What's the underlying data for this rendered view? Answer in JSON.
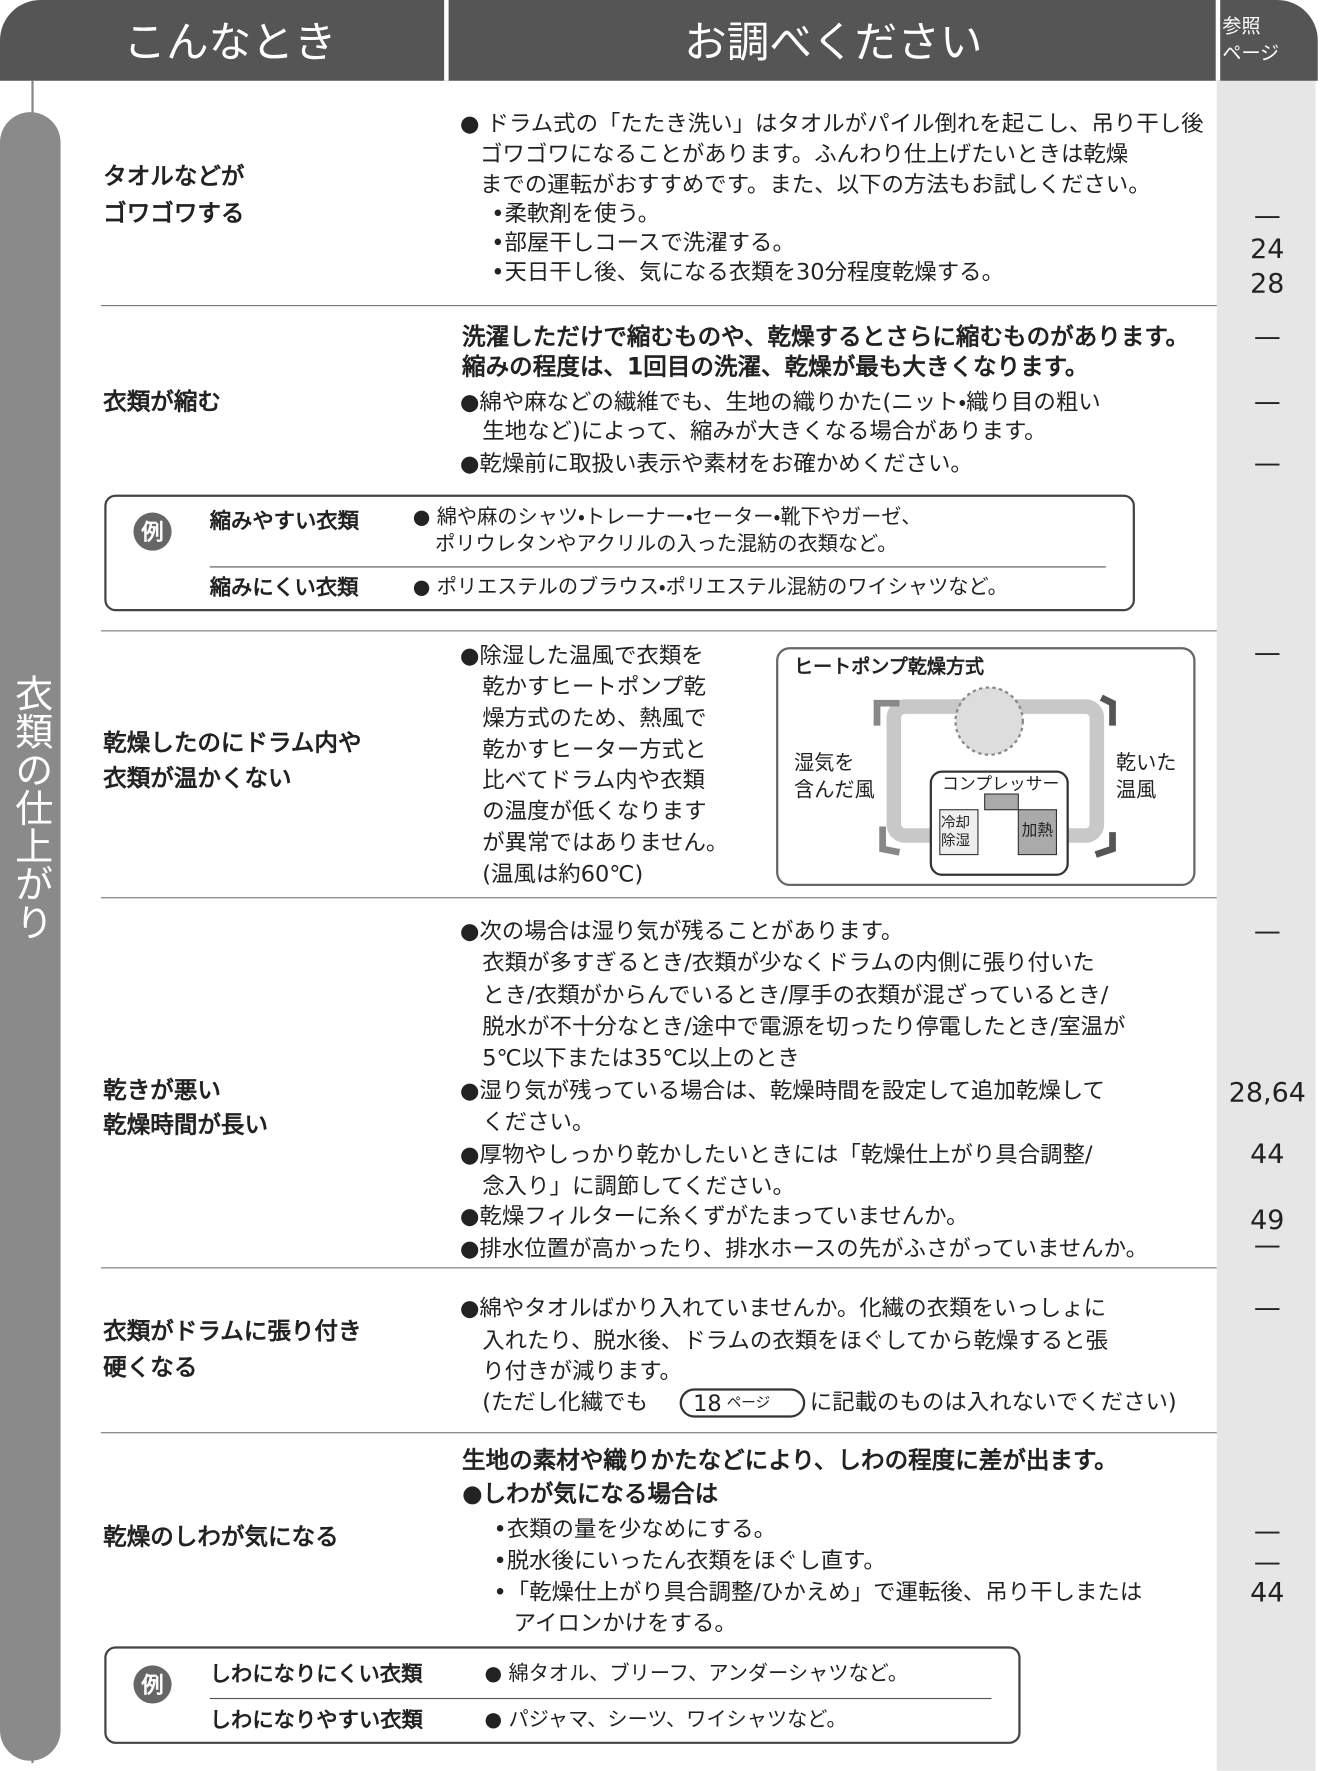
{
  "header": {
    "col1": "こんなとき",
    "col2": "お調べください",
    "col3": [
      "参照",
      "ページ"
    ]
  },
  "side_label": "衣類の仕上がり",
  "rows": [
    {
      "symptom": [
        "タオルなどが",
        "ゴワゴワする"
      ],
      "content": [
        "● ドラム式の「たたき洗い」はタオルがパイル倒れを起こし、吊り干し後",
        "ゴワゴワになることがあります。ふんわり仕上げたいときは乾燥",
        "までの運転がおすすめです。また、以下の方法もお試しください。",
        "•柔軟剤を使う。",
        "•部屋干しコースで洗濯する。",
        "•天日干し後、気になる衣類を30分程度乾燥する。"
      ],
      "refs": [
        "—",
        "24",
        "28"
      ]
    },
    {
      "symptom": [
        "衣類が縮む"
      ],
      "content": [
        "洗濯しただけで縮むものや、乾燥するとさらに縮むものがあります。",
        "縮みの程度は、1回目の洗濯、乾燥が最も大きくなります。",
        "●綿や麻などの繊維でも、生地の織りかた(ニット・織り目の粗い",
        "生地など)によって、縮みが大きくなる場合があります。",
        "●乾燥前に取扱い表示や素材をお確かめください。"
      ],
      "refs": [
        "—",
        "—",
        "—"
      ],
      "example": {
        "badge": "例",
        "items": [
          {
            "label": "縮みやすい衣類",
            "lines": [
              "● 綿や麻のシャツ・トレーナー・セーター・靴下やガーゼ、",
              "ポリウレタンやアクリルの入った混紡の衣類など。"
            ]
          },
          {
            "label": "縮みにくい衣類",
            "lines": [
              "● ポリエステルのブラウス・ポリエステル混紡のワイシャツなど。"
            ]
          }
        ]
      }
    },
    {
      "symptom": [
        "乾燥したのにドラム内や",
        "衣類が温かくない"
      ],
      "content": [
        "●除湿した温風で衣類を",
        "乾かすヒートポンプ乾",
        "燥方式のため、熱風で",
        "乾かすヒーター方式と",
        "比べてドラム内や衣類",
        "の温度が低くなります",
        "が異常ではありません。",
        "(温風は約60℃)"
      ],
      "refs": [
        "—"
      ],
      "diagram": {
        "title": "ヒートポンプ乾燥方式",
        "left_label": [
          "湿気を",
          "含んだ風"
        ],
        "right_label": [
          "乾いた",
          "温風"
        ],
        "compressor": "コンプレッサー",
        "cooling": [
          "冷却",
          "除湿"
        ],
        "heating": "加熱"
      }
    },
    {
      "symptom": [
        "乾きが悪い",
        "乾燥時間が長い"
      ],
      "content": [
        "●次の場合は湿り気が残ることがあります。",
        "衣類が多すぎるとき/衣類が少なくドラムの内側に張り付いた",
        "とき/衣類がからんでいるとき/厚手の衣類が混ざっているとき/",
        "脱水が不十分なとき/途中で電源を切ったり停電したとき/室温が",
        "5℃以下または35℃以上のとき",
        "●湿り気が残っている場合は、乾燥時間を設定して追加乾燥して",
        "ください。",
        "●厚物やしっかり乾かしたいときには「乾燥仕上がり具合調整/",
        "念入り」に調節してください。",
        "●乾燥フィルターに糸くずがたまっていませんか。",
        "●排水位置が高かったり、排水ホースの先がふさがっていませんか。"
      ],
      "refs": [
        "—",
        "28,64",
        "44",
        "49",
        "—"
      ]
    },
    {
      "symptom": [
        "衣類がドラムに張り付き",
        "硬くなる"
      ],
      "content": [
        "●綿やタオルばかり入れていませんか。化繊の衣類をいっしょに",
        "入れたり、脱水後、ドラムの衣類をほぐしてから乾燥すると張",
        "り付きが減ります。"
      ],
      "note": {
        "before": "(ただし化繊でも",
        "page": "18",
        "unit": "ページ",
        "after": "に記載のものは入れないでください)"
      },
      "refs": [
        "—"
      ]
    },
    {
      "symptom": [
        "乾燥のしわが気になる"
      ],
      "content": [
        "生地の素材や織りかたなどにより、しわの程度に差が出ます。",
        "●しわが気になる場合は",
        "•衣類の量を少なめにする。",
        "•脱水後にいったん衣類をほぐし直す。",
        "•「乾燥仕上がり具合調整/ひかえめ」で運転後、吊り干しまたは",
        "アイロンかけをする。"
      ],
      "refs": [
        "—",
        "—",
        "44"
      ],
      "example": {
        "badge": "例",
        "items": [
          {
            "label": "しわになりにくい衣類",
            "lines": [
              "● 綿タオル、ブリーフ、アンダーシャツなど。"
            ]
          },
          {
            "label": "しわになりやすい衣類",
            "lines": [
              "● パジャマ、シーツ、ワイシャツなど。"
            ]
          }
        ]
      }
    }
  ]
}
